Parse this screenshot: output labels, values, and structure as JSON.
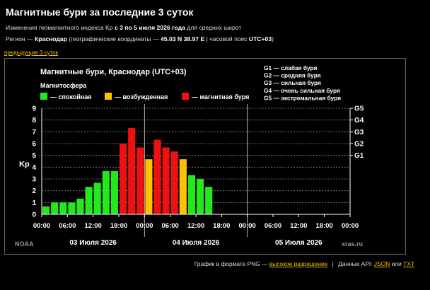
{
  "page": {
    "title": "Магнитные бури за последние 3 суток",
    "subtitle_prefix": "Изменения геомагнитного индекса Kp",
    "subtitle_bold": "с 3 по 5 июля 2026 года",
    "subtitle_suffix": "для средних широт",
    "region_prefix": "Регион —",
    "region_name": "Краснодар",
    "region_coords_label": "(географические координаты —",
    "region_coords": "45.03 N 38.97 E",
    "region_tz_label": "| часовой пояс",
    "region_tz": "UTC+03",
    "region_tz_close": ")",
    "prev_link": "предыдущие 3 суток"
  },
  "footer": {
    "prefix": "График в формате PNG —",
    "high_res": "высокое разрешение",
    "api_label": "Данные API:",
    "json": "JSON",
    "or": "или",
    "txt": "TXT"
  },
  "colors": {
    "quiet": "#22e81e",
    "active": "#ffc000",
    "storm": "#ee1111",
    "link": "#e8c400"
  },
  "chart_data": {
    "type": "bar",
    "title": "Магнитные бури, Краснодар (UTC+03)",
    "ylabel": "Kp",
    "ylim": [
      0,
      9
    ],
    "y_ticks": [
      "0",
      "1",
      "2",
      "3",
      "4",
      "5",
      "6",
      "7",
      "8",
      "9"
    ],
    "g_scale_title": "",
    "g_ticks": [
      {
        "label": "G1",
        "kp": 5
      },
      {
        "label": "G2",
        "kp": 6
      },
      {
        "label": "G3",
        "kp": 7
      },
      {
        "label": "G4",
        "kp": 8
      },
      {
        "label": "G5",
        "kp": 9
      }
    ],
    "g_legend": [
      "G1 — слабая буря",
      "G2 — средняя буря",
      "G3 — сильная буря",
      "G4 — очень сильная буря",
      "G5 — экстремальная буря"
    ],
    "legend_title": "Магнитосфера",
    "legend": [
      {
        "label": "— спокойная",
        "color": "#22e81e"
      },
      {
        "label": "— возбужденная",
        "color": "#ffc000"
      },
      {
        "label": "— магнитная буря",
        "color": "#ee1111"
      }
    ],
    "x_ticks": [
      "00:00",
      "06:00",
      "12:00",
      "18:00",
      "00:00",
      "06:00",
      "12:00",
      "18:00",
      "00:00",
      "06:00",
      "12:00",
      "18:00",
      "00:00"
    ],
    "days": [
      "03 Июля 2026",
      "04 Июля 2026",
      "05 Июля 2026"
    ],
    "slots_total": 36,
    "values": [
      0.67,
      1.0,
      1.0,
      1.0,
      1.33,
      2.33,
      2.67,
      3.67,
      3.67,
      6.0,
      7.33,
      5.67,
      4.67,
      6.33,
      5.67,
      5.33,
      4.67,
      3.33,
      3.0,
      2.33
    ],
    "source_left": "NOAA",
    "source_right": "xras.ru"
  }
}
